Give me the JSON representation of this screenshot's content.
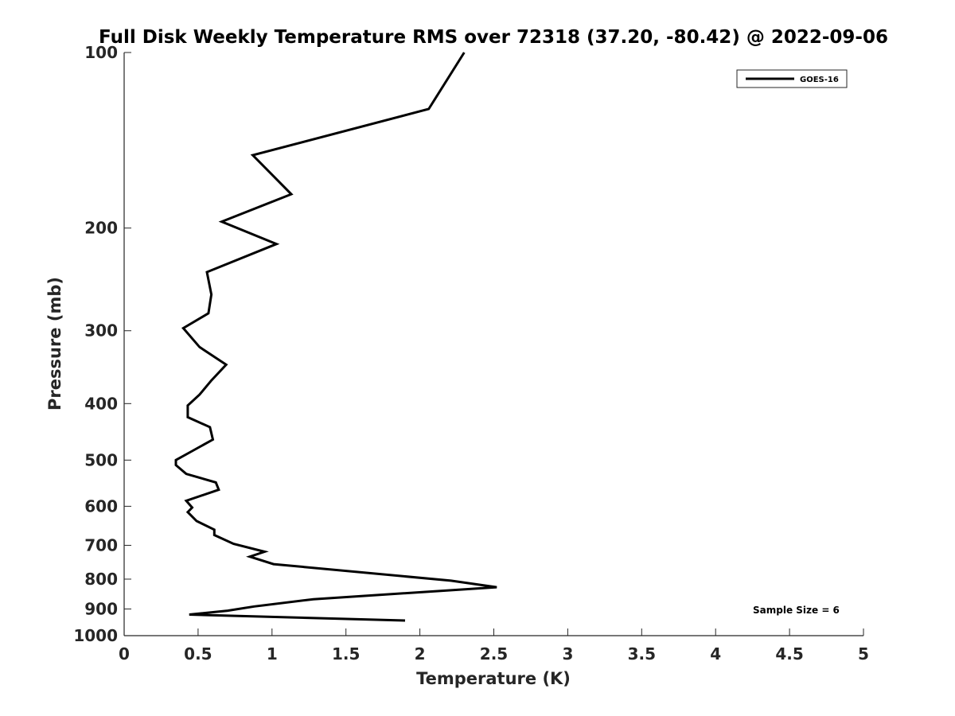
{
  "chart_data": {
    "type": "line",
    "title": "Full Disk Weekly Temperature RMS over 72318 (37.20, -80.42) @ 2022-09-06",
    "xlabel": "Temperature (K)",
    "ylabel": "Pressure (mb)",
    "xlim": [
      0,
      5
    ],
    "ylim": [
      100,
      1000
    ],
    "yscale": "log",
    "y_reversed": true,
    "x_ticks": [
      "0",
      "0.5",
      "1",
      "1.5",
      "2",
      "2.5",
      "3",
      "3.5",
      "4",
      "4.5",
      "5"
    ],
    "y_ticks": [
      "100",
      "200",
      "300",
      "400",
      "500",
      "600",
      "700",
      "800",
      "900",
      "1000"
    ],
    "legend_position": "top-right",
    "grid": false,
    "annotation": "Sample Size = 6",
    "series": [
      {
        "name": "GOES-16",
        "color": "#000000",
        "points": [
          [
            2.3,
            100
          ],
          [
            2.06,
            125
          ],
          [
            0.87,
            150
          ],
          [
            1.13,
            175
          ],
          [
            0.66,
            195
          ],
          [
            1.03,
            213
          ],
          [
            0.56,
            238
          ],
          [
            0.59,
            260
          ],
          [
            0.57,
            280
          ],
          [
            0.4,
            297
          ],
          [
            0.51,
            320
          ],
          [
            0.69,
            343
          ],
          [
            0.59,
            365
          ],
          [
            0.51,
            386
          ],
          [
            0.43,
            403
          ],
          [
            0.43,
            422
          ],
          [
            0.58,
            439
          ],
          [
            0.6,
            461
          ],
          [
            0.45,
            484
          ],
          [
            0.35,
            500
          ],
          [
            0.35,
            510
          ],
          [
            0.42,
            528
          ],
          [
            0.62,
            546
          ],
          [
            0.64,
            562
          ],
          [
            0.42,
            587
          ],
          [
            0.46,
            603
          ],
          [
            0.43,
            614
          ],
          [
            0.49,
            636
          ],
          [
            0.61,
            658
          ],
          [
            0.61,
            672
          ],
          [
            0.74,
            696
          ],
          [
            0.95,
            718
          ],
          [
            0.85,
            732
          ],
          [
            1.01,
            754
          ],
          [
            2.21,
            805
          ],
          [
            2.52,
            826
          ],
          [
            1.28,
            866
          ],
          [
            0.88,
            891
          ],
          [
            0.7,
            906
          ],
          [
            0.44,
            920
          ],
          [
            1.9,
            942
          ]
        ]
      }
    ]
  }
}
